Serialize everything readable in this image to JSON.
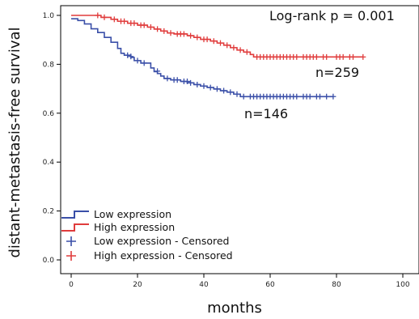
{
  "chart_data": {
    "type": "line",
    "subtype": "kaplan-meier",
    "title": "",
    "xlabel": "months",
    "ylabel": "distant-metastasis-free survival",
    "xlim": [
      -3,
      102
    ],
    "ylim": [
      -0.02,
      1.03
    ],
    "xticks": [
      0,
      20,
      40,
      60,
      80,
      100
    ],
    "yticks": [
      0.0,
      0.2,
      0.4,
      0.6,
      0.8,
      1.0
    ],
    "ytick_labels": [
      "0.0",
      "0.2",
      "0.4",
      "0.6",
      "0.8",
      "1.0"
    ],
    "grid": false,
    "legend_position": "bottom-left",
    "annotations": {
      "logrank": "Log-rank p = 0.001",
      "n_high": "n=259",
      "n_low": "n=146"
    },
    "series": [
      {
        "name": "Low expression",
        "color": "#3a4fa8",
        "steps": [
          [
            0,
            0.986
          ],
          [
            2,
            0.979
          ],
          [
            4,
            0.965
          ],
          [
            6,
            0.945
          ],
          [
            8,
            0.93
          ],
          [
            10,
            0.91
          ],
          [
            12,
            0.89
          ],
          [
            14,
            0.865
          ],
          [
            15,
            0.845
          ],
          [
            16,
            0.837
          ],
          [
            18,
            0.828
          ],
          [
            19,
            0.815
          ],
          [
            21,
            0.805
          ],
          [
            24,
            0.785
          ],
          [
            25,
            0.77
          ],
          [
            26,
            0.762
          ],
          [
            27,
            0.752
          ],
          [
            28,
            0.742
          ],
          [
            30,
            0.736
          ],
          [
            33,
            0.73
          ],
          [
            35,
            0.724
          ],
          [
            37,
            0.717
          ],
          [
            39,
            0.711
          ],
          [
            41,
            0.705
          ],
          [
            43,
            0.699
          ],
          [
            45,
            0.692
          ],
          [
            47,
            0.686
          ],
          [
            49,
            0.678
          ],
          [
            51,
            0.668
          ],
          [
            79,
            0.668
          ]
        ],
        "censored": [
          [
            17,
            0.837
          ],
          [
            18,
            0.832
          ],
          [
            20,
            0.815
          ],
          [
            22,
            0.805
          ],
          [
            26,
            0.772
          ],
          [
            29,
            0.742
          ],
          [
            31,
            0.736
          ],
          [
            32,
            0.736
          ],
          [
            34,
            0.73
          ],
          [
            35,
            0.73
          ],
          [
            36,
            0.724
          ],
          [
            38,
            0.717
          ],
          [
            40,
            0.711
          ],
          [
            42,
            0.705
          ],
          [
            44,
            0.699
          ],
          [
            46,
            0.692
          ],
          [
            48,
            0.686
          ],
          [
            50,
            0.678
          ],
          [
            52,
            0.668
          ],
          [
            54,
            0.668
          ],
          [
            55,
            0.668
          ],
          [
            56,
            0.668
          ],
          [
            57,
            0.668
          ],
          [
            58,
            0.668
          ],
          [
            59,
            0.668
          ],
          [
            60,
            0.668
          ],
          [
            61,
            0.668
          ],
          [
            62,
            0.668
          ],
          [
            63,
            0.668
          ],
          [
            64,
            0.668
          ],
          [
            65,
            0.668
          ],
          [
            66,
            0.668
          ],
          [
            67,
            0.668
          ],
          [
            68,
            0.668
          ],
          [
            70,
            0.668
          ],
          [
            71,
            0.668
          ],
          [
            72,
            0.668
          ],
          [
            74,
            0.668
          ],
          [
            75,
            0.668
          ],
          [
            77,
            0.668
          ],
          [
            79,
            0.668
          ]
        ]
      },
      {
        "name": "High expression",
        "color": "#e03c3c",
        "steps": [
          [
            0,
            1.0
          ],
          [
            9,
            0.992
          ],
          [
            12,
            0.984
          ],
          [
            14,
            0.976
          ],
          [
            17,
            0.968
          ],
          [
            20,
            0.96
          ],
          [
            23,
            0.952
          ],
          [
            25,
            0.944
          ],
          [
            27,
            0.936
          ],
          [
            29,
            0.928
          ],
          [
            31,
            0.924
          ],
          [
            35,
            0.917
          ],
          [
            37,
            0.91
          ],
          [
            39,
            0.902
          ],
          [
            42,
            0.895
          ],
          [
            44,
            0.887
          ],
          [
            46,
            0.878
          ],
          [
            48,
            0.868
          ],
          [
            50,
            0.858
          ],
          [
            52,
            0.85
          ],
          [
            54,
            0.84
          ],
          [
            55,
            0.83
          ],
          [
            88,
            0.83
          ]
        ],
        "censored": [
          [
            8,
            1.0
          ],
          [
            10,
            0.992
          ],
          [
            13,
            0.984
          ],
          [
            15,
            0.976
          ],
          [
            16,
            0.976
          ],
          [
            18,
            0.968
          ],
          [
            19,
            0.968
          ],
          [
            21,
            0.96
          ],
          [
            22,
            0.96
          ],
          [
            24,
            0.952
          ],
          [
            26,
            0.944
          ],
          [
            28,
            0.936
          ],
          [
            30,
            0.928
          ],
          [
            32,
            0.924
          ],
          [
            33,
            0.924
          ],
          [
            34,
            0.924
          ],
          [
            36,
            0.917
          ],
          [
            38,
            0.91
          ],
          [
            40,
            0.902
          ],
          [
            41,
            0.902
          ],
          [
            43,
            0.895
          ],
          [
            45,
            0.887
          ],
          [
            47,
            0.878
          ],
          [
            49,
            0.868
          ],
          [
            51,
            0.858
          ],
          [
            53,
            0.85
          ],
          [
            56,
            0.83
          ],
          [
            57,
            0.83
          ],
          [
            58,
            0.83
          ],
          [
            59,
            0.83
          ],
          [
            60,
            0.83
          ],
          [
            61,
            0.83
          ],
          [
            62,
            0.83
          ],
          [
            63,
            0.83
          ],
          [
            64,
            0.83
          ],
          [
            65,
            0.83
          ],
          [
            66,
            0.83
          ],
          [
            67,
            0.83
          ],
          [
            68,
            0.83
          ],
          [
            70,
            0.83
          ],
          [
            71,
            0.83
          ],
          [
            72,
            0.83
          ],
          [
            73,
            0.83
          ],
          [
            74,
            0.83
          ],
          [
            76,
            0.83
          ],
          [
            77,
            0.83
          ],
          [
            80,
            0.83
          ],
          [
            81,
            0.83
          ],
          [
            82,
            0.83
          ],
          [
            84,
            0.83
          ],
          [
            85,
            0.83
          ],
          [
            88,
            0.83
          ]
        ]
      }
    ],
    "legend": [
      {
        "label": "Low expression",
        "kind": "step",
        "color": "#3a4fa8"
      },
      {
        "label": "High expression",
        "kind": "step",
        "color": "#e03c3c"
      },
      {
        "label": "Low expression - Censored",
        "kind": "censor",
        "color": "#3a4fa8"
      },
      {
        "label": "High expression - Censored",
        "kind": "censor",
        "color": "#e03c3c"
      }
    ]
  }
}
